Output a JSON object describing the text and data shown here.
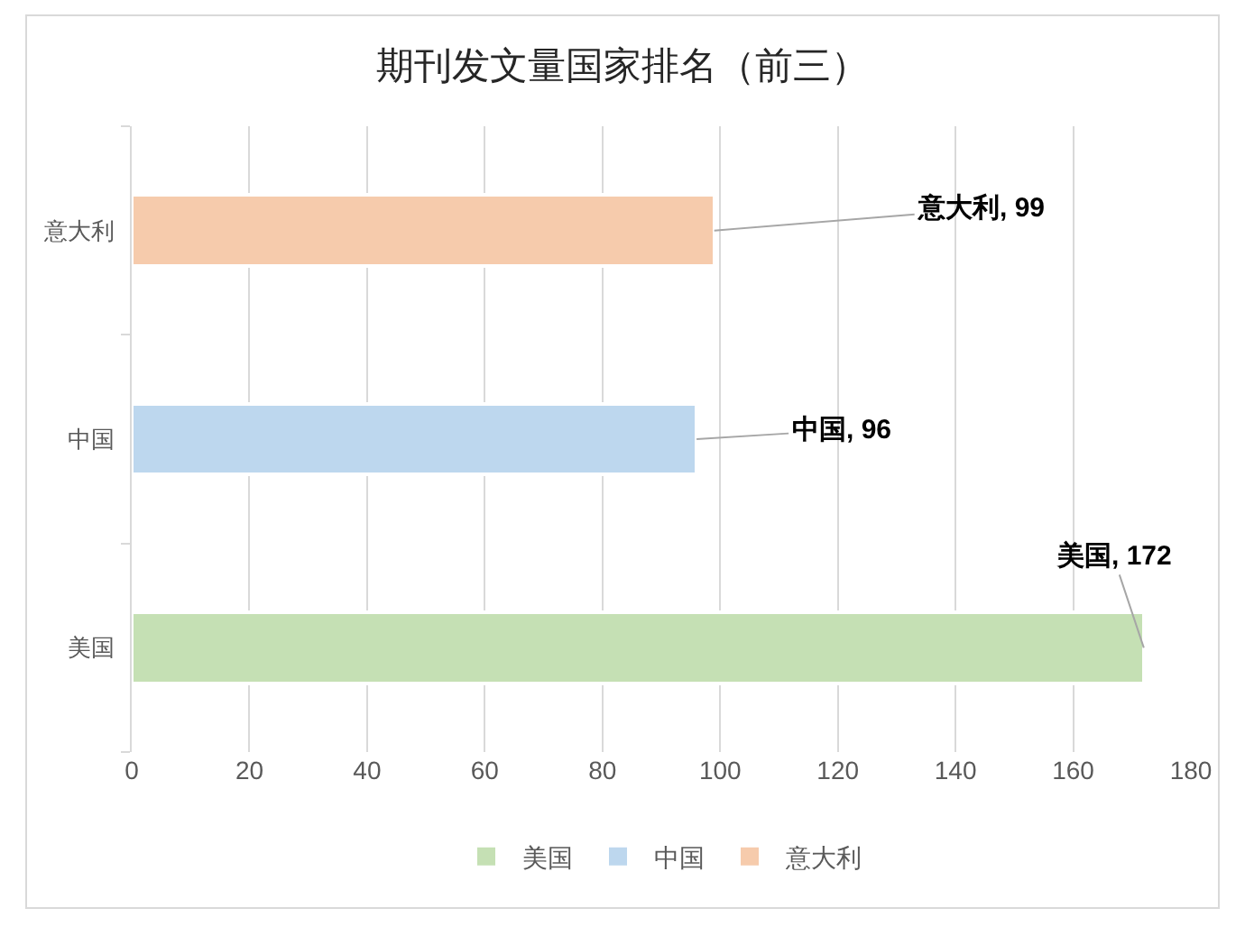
{
  "chart_data": {
    "type": "bar",
    "orientation": "horizontal",
    "stacked": true,
    "title": "期刊发文量国家排名（前三）",
    "categories": [
      "意大利",
      "中国",
      "美国"
    ],
    "series": [
      {
        "name": "美国",
        "color": "#c5e0b4",
        "values": [
          null,
          null,
          172
        ],
        "value_labels": [
          null,
          null,
          "美国, 172"
        ]
      },
      {
        "name": "中国",
        "color": "#bdd7ee",
        "values": [
          null,
          96,
          null
        ],
        "value_labels": [
          null,
          "中国, 96",
          null
        ]
      },
      {
        "name": "意大利",
        "color": "#f6cbac",
        "values": [
          99,
          null,
          null
        ],
        "value_labels": [
          "意大利, 99",
          null,
          null
        ]
      }
    ],
    "xlim": [
      0,
      180
    ],
    "xticks": [
      0,
      20,
      40,
      60,
      80,
      100,
      120,
      140,
      160,
      180
    ],
    "grid": "x",
    "legend": "bottom"
  }
}
